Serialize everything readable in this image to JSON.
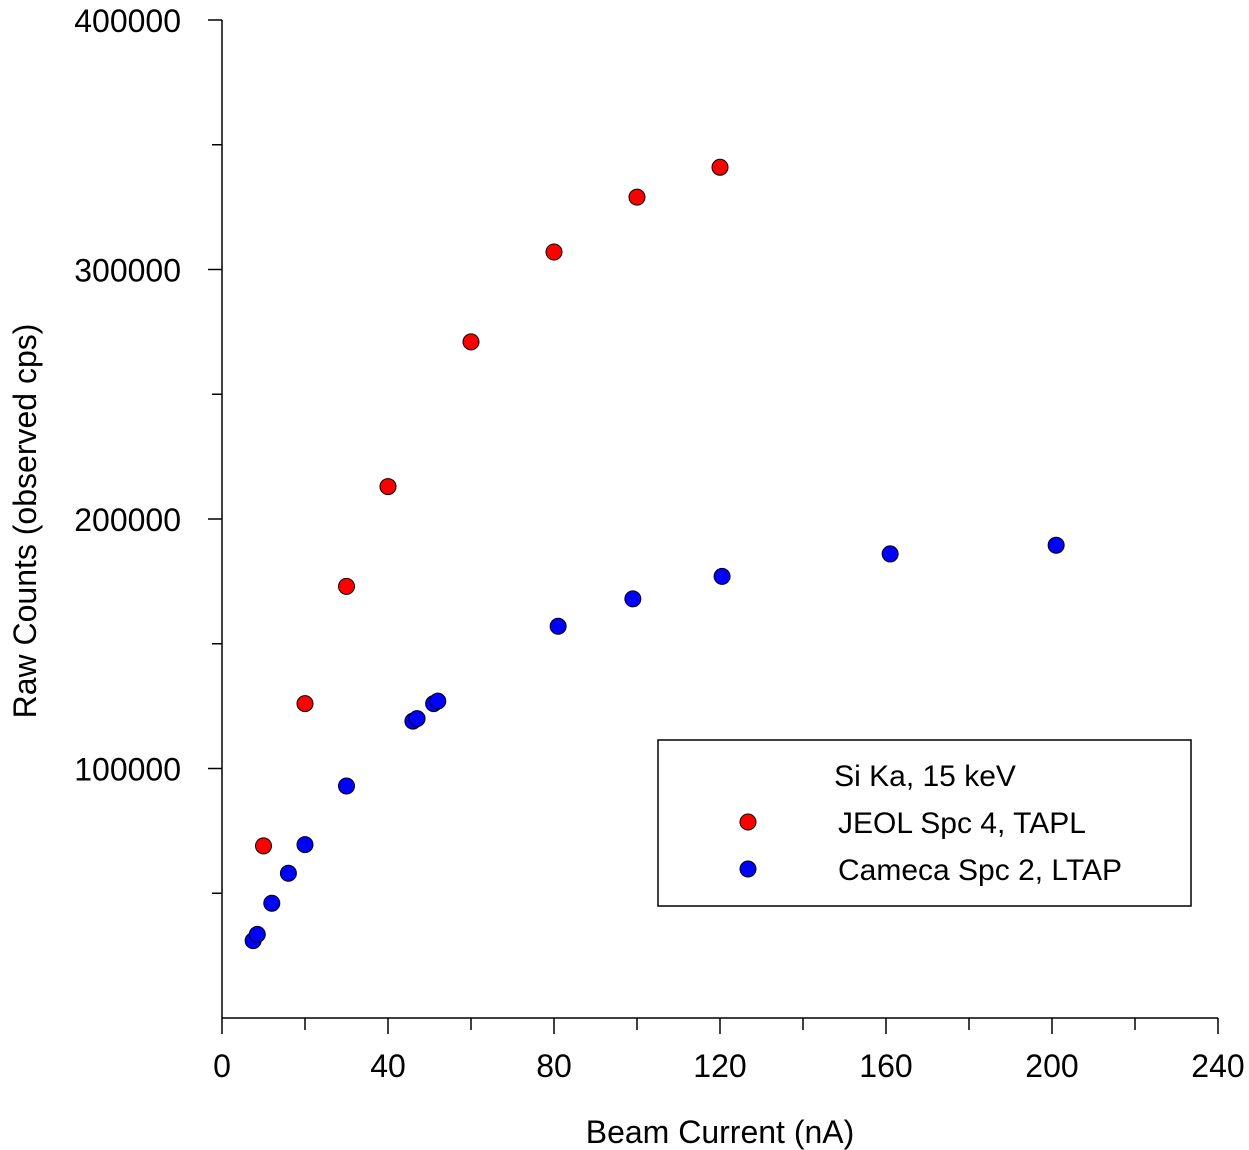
{
  "chart_data": {
    "type": "scatter",
    "title": "",
    "xlabel": "Beam Current (nA)",
    "ylabel": "Raw Counts (observed cps)",
    "xlim": [
      0,
      240
    ],
    "ylim": [
      0,
      400000
    ],
    "x_ticks": [
      0,
      40,
      80,
      120,
      160,
      200,
      240
    ],
    "x_minor_ticks": [
      20,
      60,
      100,
      140,
      180,
      220
    ],
    "y_ticks": [
      100000,
      200000,
      300000,
      400000
    ],
    "y_minor_ticks": [
      50000,
      150000,
      250000,
      350000
    ],
    "x_tick_labels": [
      "0",
      "40",
      "80",
      "120",
      "160",
      "200",
      "240"
    ],
    "y_tick_labels": [
      "100000",
      "200000",
      "300000",
      "400000"
    ],
    "grid": false,
    "legend": {
      "placement": "center-right",
      "title": "Si Ka, 15 keV"
    },
    "series": [
      {
        "name": "JEOL Spc 4, TAPL",
        "color": "#ff0000",
        "points": [
          {
            "x": 10,
            "y": 69000
          },
          {
            "x": 20,
            "y": 126000
          },
          {
            "x": 30,
            "y": 173000
          },
          {
            "x": 40,
            "y": 213000
          },
          {
            "x": 60,
            "y": 271000
          },
          {
            "x": 80,
            "y": 307000
          },
          {
            "x": 100,
            "y": 329000
          },
          {
            "x": 120,
            "y": 341000
          }
        ]
      },
      {
        "name": "Cameca Spc 2, LTAP",
        "color": "#0000ff",
        "points": [
          {
            "x": 7.5,
            "y": 31000
          },
          {
            "x": 8.5,
            "y": 33500
          },
          {
            "x": 12,
            "y": 46000
          },
          {
            "x": 16,
            "y": 58000
          },
          {
            "x": 20,
            "y": 69500
          },
          {
            "x": 30,
            "y": 93000
          },
          {
            "x": 46,
            "y": 119000
          },
          {
            "x": 47,
            "y": 120000
          },
          {
            "x": 51,
            "y": 126000
          },
          {
            "x": 52,
            "y": 127000
          },
          {
            "x": 81,
            "y": 157000
          },
          {
            "x": 99,
            "y": 168000
          },
          {
            "x": 120.5,
            "y": 177000
          },
          {
            "x": 161,
            "y": 186000
          },
          {
            "x": 201,
            "y": 189500
          }
        ]
      }
    ]
  }
}
